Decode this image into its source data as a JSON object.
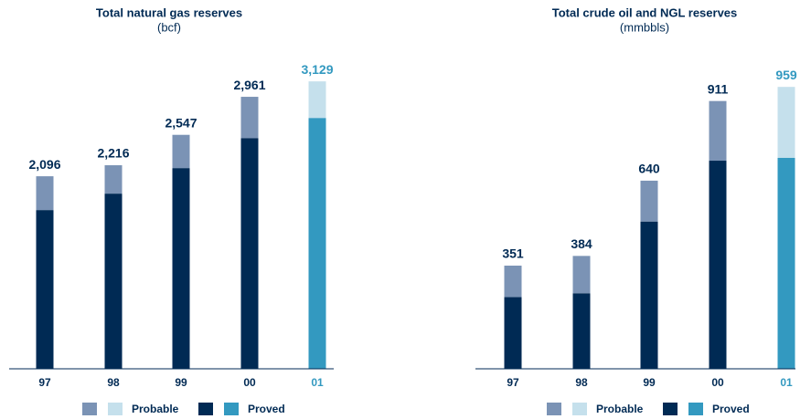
{
  "chart_data": [
    {
      "type": "stacked_bar",
      "title": "Total natural gas reserves",
      "subtitle": "(bcf)",
      "categories": [
        "97",
        "98",
        "99",
        "00",
        "01"
      ],
      "series": [
        {
          "name": "Proved",
          "colors": [
            "#002a54",
            "#002a54",
            "#002a54",
            "#002a54",
            "#3399c0"
          ],
          "values": [
            1728,
            1907,
            2185,
            2512,
            2731
          ]
        },
        {
          "name": "Probable",
          "colors": [
            "#7b93b5",
            "#7b93b5",
            "#7b93b5",
            "#7b93b5",
            "#c5e0ec"
          ],
          "values": [
            368,
            309,
            362,
            449,
            398
          ]
        }
      ],
      "totals": {
        "values": [
          2096,
          2216,
          2547,
          2961,
          3129
        ],
        "value_labels": [
          "2,096",
          "2,216",
          "2,547",
          "2,961",
          "3,129"
        ]
      },
      "ylim": [
        0,
        3200
      ]
    },
    {
      "type": "stacked_bar",
      "title": "Total crude oil and NGL reserves",
      "subtitle": "(mmbbls)",
      "categories": [
        "97",
        "98",
        "99",
        "00",
        "01"
      ],
      "series": [
        {
          "name": "Proved",
          "colors": [
            "#002a54",
            "#002a54",
            "#002a54",
            "#002a54",
            "#3399c0"
          ],
          "values": [
            244,
            257,
            501,
            708,
            718
          ]
        },
        {
          "name": "Probable",
          "colors": [
            "#7b93b5",
            "#7b93b5",
            "#7b93b5",
            "#7b93b5",
            "#c5e0ec"
          ],
          "values": [
            107,
            127,
            139,
            203,
            241
          ]
        }
      ],
      "totals": {
        "values": [
          351,
          384,
          640,
          911,
          959
        ]
      },
      "ylim": [
        0,
        1000
      ]
    }
  ]
}
